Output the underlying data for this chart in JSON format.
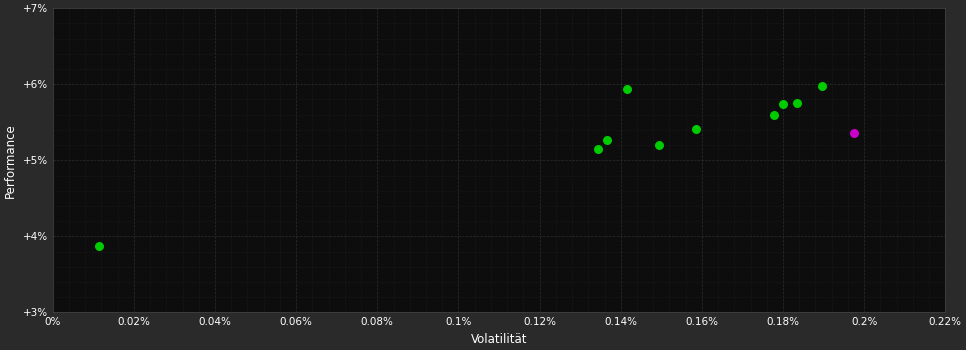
{
  "background_color": "#2a2a2a",
  "plot_bg_color": "#0d0d0d",
  "grid_color": "#2e2e2e",
  "minor_grid_color": "#1e1e1e",
  "text_color": "#ffffff",
  "xlabel": "Volatilität",
  "ylabel": "Performance",
  "xlim": [
    0,
    0.0022
  ],
  "ylim": [
    0.03,
    0.07
  ],
  "xtick_vals": [
    0,
    0.0002,
    0.0004,
    0.0006,
    0.0008,
    0.001,
    0.0012,
    0.0014,
    0.0016,
    0.0018,
    0.002,
    0.0022
  ],
  "xtick_labels": [
    "0%",
    "0.02%",
    "0.04%",
    "0.06%",
    "0.08%",
    "0.1%",
    "0.12%",
    "0.14%",
    "0.16%",
    "0.18%",
    "0.2%",
    "0.22%"
  ],
  "ytick_vals": [
    0.03,
    0.04,
    0.05,
    0.06,
    0.07
  ],
  "ytick_labels": [
    "+3%",
    "+4%",
    "+5%",
    "+6%",
    "+7%"
  ],
  "green_points": [
    [
      0.000115,
      0.03875
    ],
    [
      0.001345,
      0.05155
    ],
    [
      0.001365,
      0.05265
    ],
    [
      0.001415,
      0.05935
    ],
    [
      0.001495,
      0.05195
    ],
    [
      0.001585,
      0.05415
    ],
    [
      0.001778,
      0.05595
    ],
    [
      0.0018,
      0.05745
    ],
    [
      0.001835,
      0.05755
    ],
    [
      0.001895,
      0.05975
    ]
  ],
  "magenta_points": [
    [
      0.001975,
      0.05365
    ]
  ],
  "marker_size": 42
}
